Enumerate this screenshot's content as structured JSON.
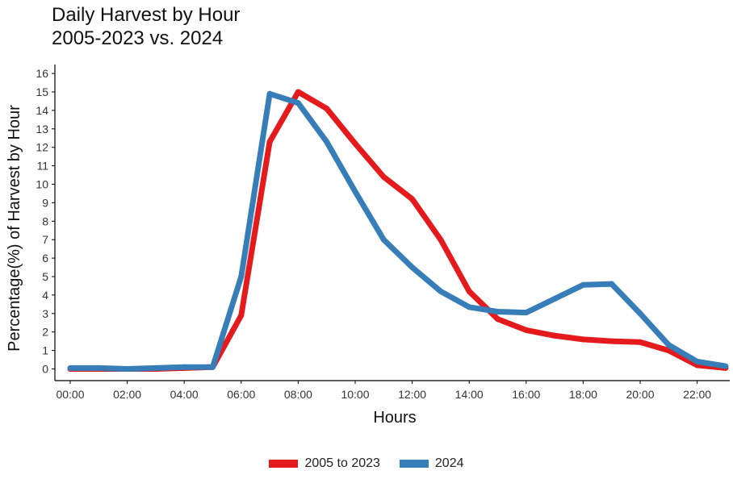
{
  "chart_data": {
    "type": "line",
    "title": "Daily Harvest by Hour",
    "subtitle": "2005-2023 vs. 2024",
    "xlabel": "Hours",
    "ylabel": "Percentage(%) of Harvest by Hour",
    "x": [
      0,
      1,
      2,
      3,
      4,
      5,
      6,
      7,
      8,
      9,
      10,
      11,
      12,
      13,
      14,
      15,
      16,
      17,
      18,
      19,
      20,
      21,
      22,
      23
    ],
    "x_ticks": [
      "00:00",
      "02:00",
      "04:00",
      "06:00",
      "08:00",
      "10:00",
      "12:00",
      "14:00",
      "16:00",
      "18:00",
      "20:00",
      "22:00"
    ],
    "y_ticks": [
      0,
      1,
      2,
      3,
      4,
      5,
      6,
      7,
      8,
      9,
      10,
      11,
      12,
      13,
      14,
      15,
      16
    ],
    "xlim": [
      0,
      23
    ],
    "ylim": [
      0,
      16
    ],
    "grid": false,
    "legend_position": "bottom",
    "series": [
      {
        "name": "2005 to 2023",
        "color": "#e41a1c",
        "values": [
          0,
          0,
          0,
          0,
          0.05,
          0.1,
          2.9,
          12.3,
          15,
          14.1,
          12.2,
          10.4,
          9.2,
          7.0,
          4.2,
          2.7,
          2.1,
          1.8,
          1.6,
          1.5,
          1.45,
          1.0,
          0.2,
          0.05
        ]
      },
      {
        "name": "2024",
        "color": "#377eb8",
        "values": [
          0.05,
          0.05,
          0.0,
          0.05,
          0.1,
          0.1,
          5.0,
          14.9,
          14.4,
          12.3,
          9.6,
          7.0,
          5.5,
          4.2,
          3.35,
          3.1,
          3.05,
          3.8,
          4.55,
          4.6,
          3.0,
          1.3,
          0.4,
          0.15
        ]
      }
    ]
  }
}
